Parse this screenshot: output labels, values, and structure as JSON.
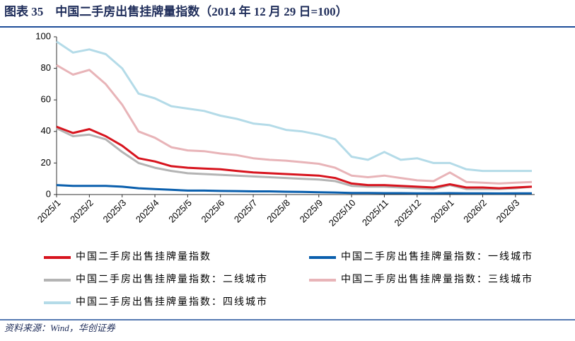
{
  "chart_data": {
    "type": "line",
    "title": "图表 35　中国二手房出售挂牌量指数（2014 年 12 月 29 日=100）",
    "source": "资料来源：Wind，华创证券",
    "categories": [
      "2025/1",
      null,
      "2025/2",
      null,
      "2025/3",
      null,
      "2025/4",
      null,
      "2025/5",
      null,
      "2025/6",
      null,
      "2025/7",
      null,
      "2025/8",
      null,
      "2025/9",
      null,
      "2025/10",
      null,
      "2025/11",
      null,
      "2025/12",
      null,
      "2026/1",
      null,
      "2026/2",
      null,
      "2026/3",
      null
    ],
    "ylim": [
      0,
      100
    ],
    "yticks": [
      0,
      20,
      40,
      60,
      80,
      100
    ],
    "grid": false,
    "series": [
      {
        "name": "中国二手房出售挂牌量指数",
        "color": "#d7141e",
        "values": [
          43,
          39,
          41.5,
          37,
          31,
          23,
          21,
          18,
          17,
          16.5,
          16,
          15,
          14,
          13.5,
          13,
          12.5,
          12,
          10.5,
          7,
          6,
          6,
          5.5,
          5,
          4.5,
          6.5,
          4.5,
          4.5,
          4,
          4.5,
          5
        ]
      },
      {
        "name": "中国二手房出售挂牌量指数：一线城市",
        "color": "#0a5fad",
        "values": [
          6,
          5.5,
          5.5,
          5.5,
          5,
          4,
          3.5,
          3,
          2.5,
          2.5,
          2.3,
          2.2,
          2,
          2,
          1.8,
          1.7,
          1.5,
          1.3,
          1,
          1,
          0.9,
          0.9,
          0.8,
          0.8,
          0.9,
          0.8,
          0.8,
          0.7,
          0.8,
          0.8
        ]
      },
      {
        "name": "中国二手房出售挂牌量指数：二线城市",
        "color": "#b4b4b4",
        "values": [
          42,
          37,
          38,
          35,
          27,
          20,
          17,
          15,
          13.5,
          13,
          12.5,
          12,
          11.5,
          11,
          10.5,
          10,
          9.5,
          8.5,
          5.5,
          5,
          5,
          4.5,
          4,
          3.5,
          6,
          3.5,
          3.5,
          3.5,
          4,
          5
        ]
      },
      {
        "name": "中国二手房出售挂牌量指数：三线城市",
        "color": "#e8b4b8",
        "values": [
          82,
          76,
          79,
          70,
          57,
          40,
          36,
          30,
          28,
          27.5,
          26,
          25,
          23,
          22,
          21.5,
          20.5,
          19.5,
          17,
          12,
          11,
          12,
          10.5,
          9,
          8.5,
          14,
          8,
          7.5,
          7,
          7.5,
          8
        ]
      },
      {
        "name": "中国二手房出售挂牌量指数：四线城市",
        "color": "#b4dbe8",
        "values": [
          97,
          90,
          92,
          89,
          80,
          64,
          61,
          56,
          54.5,
          53,
          50,
          48,
          45,
          44,
          41,
          40,
          38,
          35,
          24,
          22,
          27,
          22,
          23,
          20,
          20,
          16,
          15,
          15,
          15,
          15
        ]
      }
    ]
  }
}
